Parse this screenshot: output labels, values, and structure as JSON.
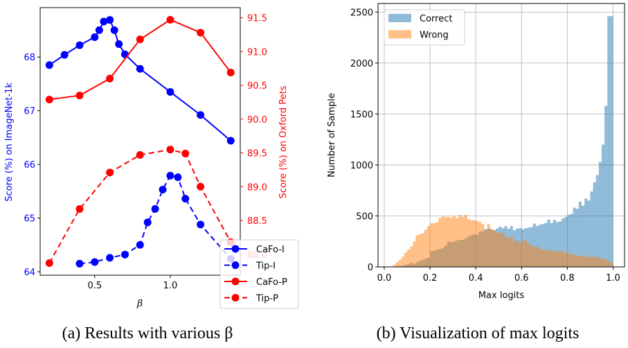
{
  "captions": {
    "a": "(a) Results with various β",
    "b": "(b) Visualization of max logits"
  },
  "chart_data": [
    {
      "type": "line",
      "xlabel": "β",
      "ylabel_left": "Score (%) on ImageNet-1k",
      "ylabel_right": "Score (%) on Oxford Pets",
      "xlim": [
        0.139,
        1.463
      ],
      "ylim_left": [
        63.935,
        68.92
      ],
      "ylim_right": [
        87.69,
        91.65
      ],
      "xticks": [
        "0.5",
        "1.0"
      ],
      "xtick_values": [
        0.5,
        1.0
      ],
      "yticks_left": [
        "64",
        "65",
        "66",
        "67",
        "68"
      ],
      "yticks_right": [
        "88.0",
        "88.5",
        "89.0",
        "89.5",
        "90.0",
        "90.5",
        "91.0",
        "91.5"
      ],
      "legend_position": "lower-right",
      "colors": {
        "left": "#0000ff",
        "right": "#ff0000"
      },
      "series": [
        {
          "name": "CaFo-I",
          "axis": "left",
          "style": "solid",
          "color": "#0000ff",
          "x": [
            0.2,
            0.3,
            0.4,
            0.5,
            0.53,
            0.56,
            0.6,
            0.63,
            0.66,
            0.7,
            0.8,
            1.0,
            1.2,
            1.4
          ],
          "y": [
            67.85,
            68.04,
            68.22,
            68.37,
            68.5,
            68.66,
            68.69,
            68.5,
            68.24,
            68.05,
            67.78,
            67.35,
            66.92,
            66.44
          ]
        },
        {
          "name": "Tip-I",
          "axis": "left",
          "style": "dashed",
          "color": "#0000ff",
          "x": [
            0.4,
            0.5,
            0.6,
            0.7,
            0.8,
            0.85,
            0.9,
            0.95,
            1.0,
            1.05,
            1.1,
            1.2,
            1.4
          ],
          "y": [
            64.15,
            64.18,
            64.26,
            64.32,
            64.5,
            64.92,
            65.17,
            65.53,
            65.79,
            65.76,
            65.36,
            64.88,
            64.24
          ]
        },
        {
          "name": "CaFo-P",
          "axis": "right",
          "style": "solid",
          "color": "#ff0000",
          "x": [
            0.2,
            0.4,
            0.6,
            0.8,
            1.0,
            1.2,
            1.4
          ],
          "y": [
            90.29,
            90.35,
            90.6,
            91.18,
            91.47,
            91.28,
            90.69
          ]
        },
        {
          "name": "Tip-P",
          "axis": "right",
          "style": "dashed",
          "color": "#ff0000",
          "x": [
            0.2,
            0.4,
            0.6,
            0.8,
            1.0,
            1.1,
            1.2,
            1.4
          ],
          "y": [
            87.87,
            88.67,
            89.21,
            89.47,
            89.55,
            89.49,
            89.0,
            88.18
          ]
        }
      ]
    },
    {
      "type": "bar",
      "subtype": "histogram",
      "xlabel": "Max logits",
      "ylabel": "Number of Sample",
      "xlim": [
        -0.027,
        1.05
      ],
      "ylim": [
        0,
        2584
      ],
      "bin_range": [
        0,
        1
      ],
      "bins": 80,
      "grid": true,
      "legend_position": "top-left",
      "xticks": [
        "0.0",
        "0.2",
        "0.4",
        "0.6",
        "0.8",
        "1.0"
      ],
      "xtick_values": [
        0,
        0.2,
        0.4,
        0.6,
        0.8,
        1.0
      ],
      "yticks": [
        "0",
        "500",
        "1000",
        "1500",
        "2000",
        "2500"
      ],
      "ytick_values": [
        0,
        500,
        1000,
        1500,
        2000,
        2500
      ],
      "series": [
        {
          "name": "Correct",
          "color": "#1f77b4",
          "opacity": 0.5,
          "values": [
            0,
            0,
            1,
            3,
            5,
            8,
            12,
            18,
            25,
            38,
            30,
            45,
            60,
            70,
            80,
            90,
            155,
            160,
            170,
            175,
            185,
            210,
            250,
            240,
            250,
            260,
            265,
            265,
            280,
            300,
            310,
            320,
            315,
            345,
            350,
            370,
            375,
            370,
            360,
            375,
            395,
            380,
            400,
            375,
            400,
            360,
            375,
            380,
            370,
            380,
            385,
            390,
            425,
            400,
            415,
            420,
            430,
            465,
            430,
            460,
            440,
            445,
            475,
            490,
            510,
            520,
            580,
            570,
            640,
            600,
            670,
            650,
            740,
            830,
            900,
            1030,
            1200,
            1580,
            2460,
            2460
          ]
        },
        {
          "name": "Wrong",
          "color": "#ff7f0e",
          "opacity": 0.5,
          "values": [
            0,
            0,
            0,
            20,
            45,
            70,
            100,
            140,
            170,
            200,
            250,
            310,
            320,
            330,
            365,
            400,
            430,
            430,
            440,
            480,
            495,
            490,
            490,
            485,
            500,
            480,
            510,
            490,
            510,
            470,
            460,
            460,
            450,
            440,
            420,
            360,
            420,
            370,
            360,
            340,
            335,
            330,
            300,
            280,
            300,
            250,
            260,
            230,
            270,
            250,
            230,
            210,
            195,
            200,
            180,
            170,
            165,
            165,
            160,
            155,
            150,
            160,
            145,
            140,
            130,
            125,
            120,
            110,
            110,
            105,
            100,
            100,
            95,
            100,
            95,
            90,
            80,
            75,
            60,
            40
          ]
        }
      ]
    }
  ]
}
